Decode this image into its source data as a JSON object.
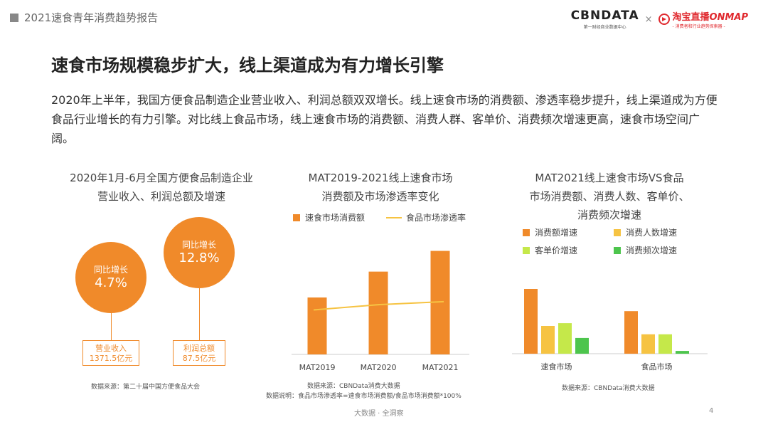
{
  "header": {
    "report_title": "2021速食青年消费趋势报告",
    "cbn_logo": "CBNDATA",
    "cbn_sub": "第一财经商业数据中心",
    "times": "×",
    "taobao_main": "淘宝直播",
    "taobao_onmap": "ONMAP",
    "taobao_sub": "- 消费者和行业趋势探索器 -"
  },
  "main": {
    "title": "速食市场规模稳步扩大，线上渠道成为有力增长引擎",
    "paragraph": "2020年上半年，我国方便食品制造企业营业收入、利润总额双双增长。线上速食市场的消费额、渗透率稳步提升，线上渠道成为方便食品行业增长的有力引擎。对比线上食品市场，线上速食市场的消费额、消费人群、客单价、消费频次增速更高，速食市场空间广阔。"
  },
  "panel1": {
    "title_line1": "2020年1月-6月全国方便食品制造企业",
    "title_line2": "营业收入、利润总额及增速",
    "left_circle_label": "同比增长",
    "left_circle_value": "4.7%",
    "right_circle_label": "同比增长",
    "right_circle_value": "12.8%",
    "left_box_line1": "营业收入",
    "left_box_line2": "1371.5亿元",
    "right_box_line1": "利润总额",
    "right_box_line2": "87.5亿元",
    "source": "数据来源：第二十届中国方便食品大会"
  },
  "panel2": {
    "title_line1": "MAT2019-2021线上速食市场",
    "title_line2": "消费额及市场渗透率变化",
    "source": "数据来源：CBNData消费大数据",
    "note": "数据说明：食品市场渗透率=速食市场消费额/食品市场消费额*100%"
  },
  "panel3": {
    "title_line1": "MAT2021线上速食市场VS食品",
    "title_line2": "市场消费额、消费人数、客单价、",
    "title_line3": "消费频次增速",
    "source": "数据来源：CBNData消费大数据"
  },
  "colors": {
    "orange": "#f08a2a",
    "yellow": "#f6c342",
    "lime": "#c5e84a",
    "green": "#4dc54d"
  },
  "chart_data": [
    {
      "type": "bar",
      "categories": [
        "MAT2019",
        "MAT2020",
        "MAT2021"
      ],
      "series": [
        {
          "name": "速食市场消费额",
          "type": "bar",
          "values": [
            0.55,
            0.8,
            1.0
          ],
          "color": "#f08a2a"
        },
        {
          "name": "食品市场渗透率",
          "type": "line",
          "values": [
            0.43,
            0.48,
            0.51
          ],
          "color": "#f6c342"
        }
      ],
      "ylim": [
        0,
        1.1
      ]
    },
    {
      "type": "bar",
      "categories": [
        "速食市场",
        "食品市场"
      ],
      "series": [
        {
          "name": "消费额增速",
          "values": [
            0.7,
            0.46
          ],
          "color": "#f08a2a"
        },
        {
          "name": "消费人数增速",
          "values": [
            0.3,
            0.21
          ],
          "color": "#f6c342"
        },
        {
          "name": "客单价增速",
          "values": [
            0.33,
            0.21
          ],
          "color": "#c5e84a"
        },
        {
          "name": "消费频次增速",
          "values": [
            0.17,
            0.03
          ],
          "color": "#4dc54d"
        }
      ],
      "ylim": [
        0,
        1.0
      ]
    }
  ],
  "footer": {
    "text": "大数据 · 全洞察",
    "page": "4"
  }
}
